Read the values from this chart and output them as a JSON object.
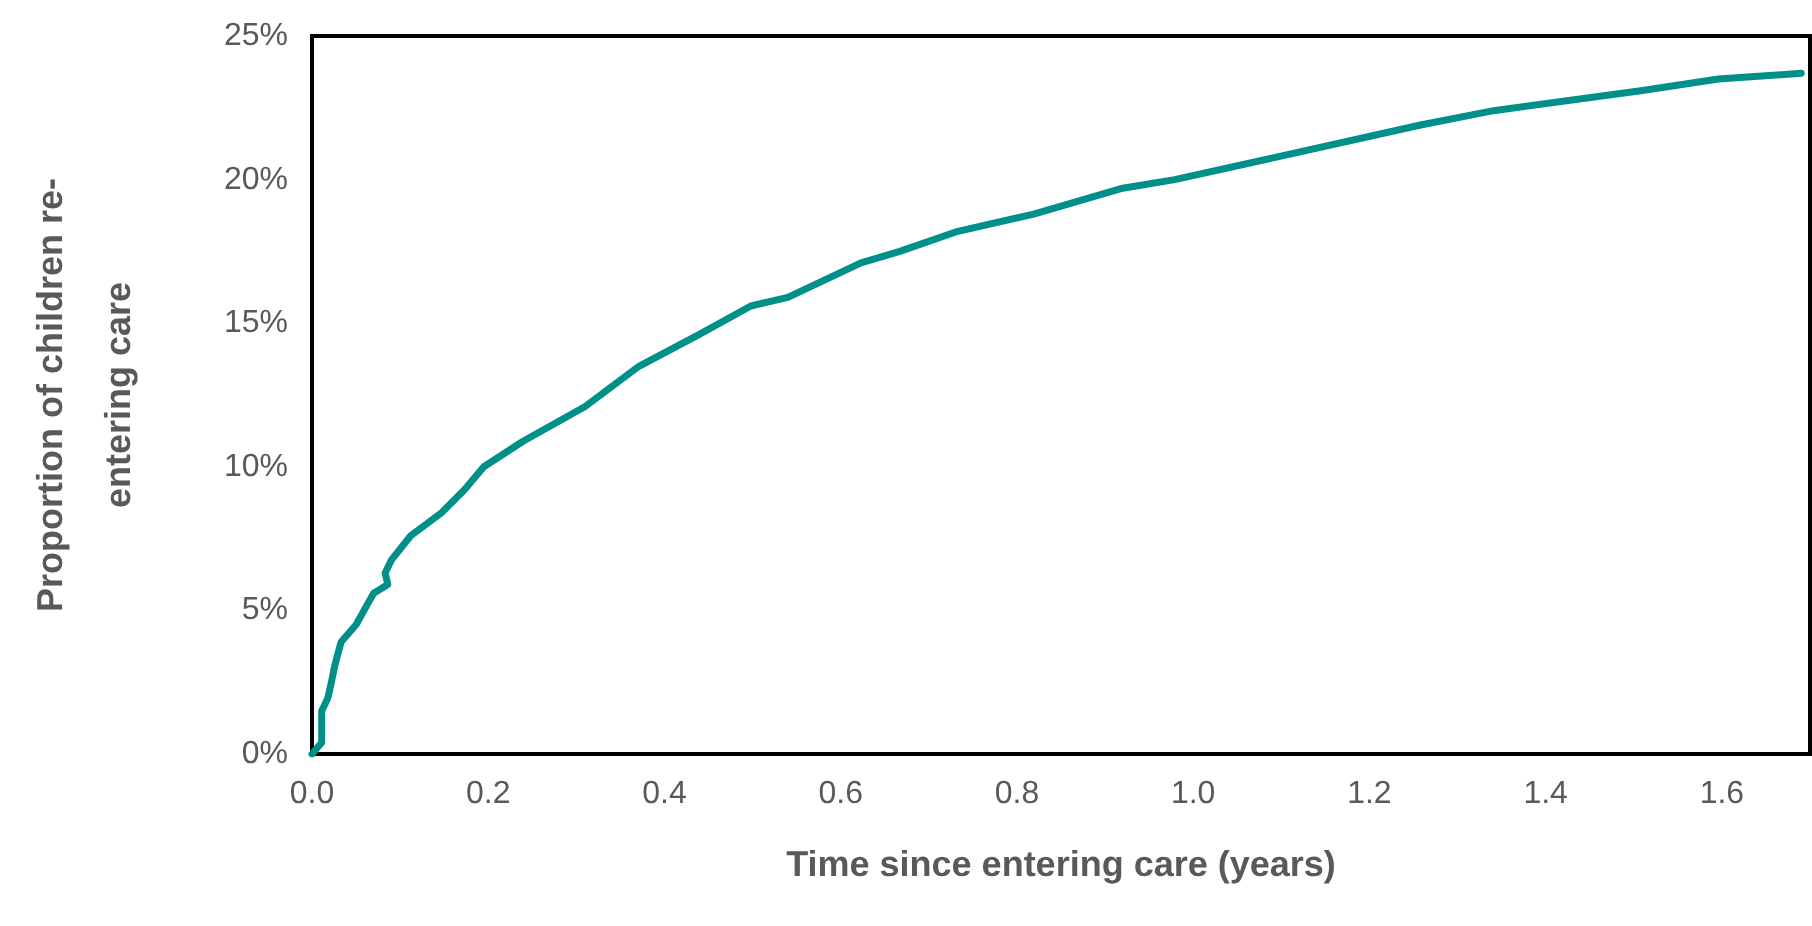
{
  "chart_data": {
    "type": "line",
    "xlabel": "Time since entering care (years)",
    "ylabel": "Proportion of children re-\nentering care",
    "x": [
      0,
      0.011,
      0.011,
      0.018,
      0.022,
      0.026,
      0.033,
      0.05,
      0.059,
      0.07,
      0.086,
      0.083,
      0.09,
      0.112,
      0.147,
      0.173,
      0.195,
      0.24,
      0.31,
      0.371,
      0.439,
      0.498,
      0.54,
      0.623,
      0.667,
      0.733,
      0.819,
      0.92,
      0.979,
      1.097,
      1.258,
      1.341,
      1.51,
      1.596,
      1.69
    ],
    "series": [
      {
        "color": "#00908a",
        "values": [
          0,
          0.4,
          1.5,
          1.95,
          2.5,
          3.1,
          3.9,
          4.5,
          5.0,
          5.6,
          5.9,
          6.3,
          6.75,
          7.6,
          8.4,
          9.2,
          10.0,
          10.9,
          12.1,
          13.5,
          14.6,
          15.6,
          15.9,
          17.1,
          17.5,
          18.2,
          18.8,
          19.7,
          20.0,
          20.8,
          21.9,
          22.4,
          23.1,
          23.5,
          23.7
        ]
      }
    ],
    "xlim": [
      0,
      1.7
    ],
    "xticks": [
      {
        "value": 0,
        "label": "0.0"
      },
      0.2,
      0.4,
      0.6,
      0.8,
      {
        "value": 1,
        "label": "1.0"
      },
      1.2,
      1.4,
      1.6
    ],
    "ylim": [
      0,
      25
    ],
    "yticks": [
      {
        "value": 0,
        "label": "0%"
      },
      {
        "value": 5,
        "label": "5%"
      },
      {
        "value": 10,
        "label": "10%"
      },
      {
        "value": 15,
        "label": "15%"
      },
      {
        "value": 20,
        "label": "20%"
      },
      {
        "value": 25,
        "label": "25%"
      }
    ],
    "grid": false,
    "marker": "none",
    "line_style": "solid"
  }
}
